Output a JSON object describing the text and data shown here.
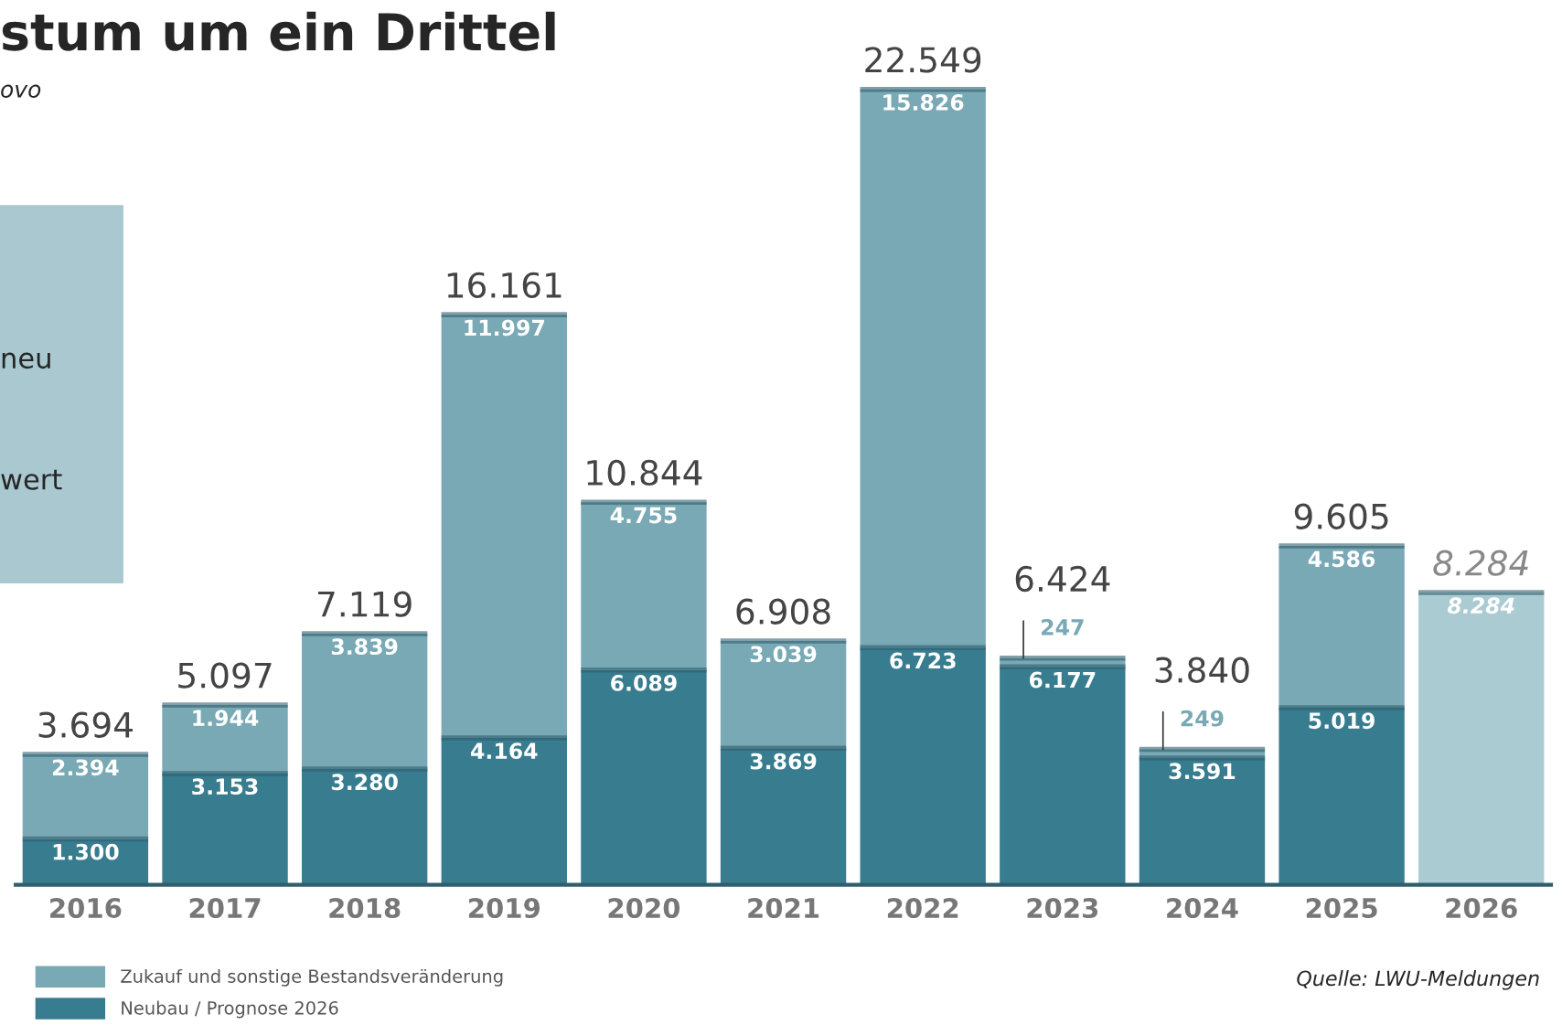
{
  "chart_data": {
    "type": "bar",
    "title": "stum um ein Drittel",
    "subtitle": "ovo",
    "stacked": true,
    "categories": [
      "2016",
      "2017",
      "2018",
      "2019",
      "2020",
      "2021",
      "2022",
      "2023",
      "2024",
      "2025",
      "2026"
    ],
    "series": [
      {
        "name": "Neubau / Prognose 2026",
        "color": "#377c8f",
        "colors": [
          "#377c8f",
          "#377c8f",
          "#377c8f",
          "#377c8f",
          "#377c8f",
          "#377c8f",
          "#377c8f",
          "#377c8f",
          "#377c8f",
          "#377c8f",
          "#abcbd3"
        ],
        "values": [
          1300,
          3153,
          3280,
          4164,
          6089,
          3869,
          6723,
          6177,
          3591,
          5019,
          8284
        ],
        "value_labels": [
          "1.300",
          "3.153",
          "3.280",
          "4.164",
          "6.089",
          "3.869",
          "6.723",
          "6.177",
          "3.591",
          "5.019",
          "8.284"
        ]
      },
      {
        "name": "Zukauf und sonstige Bestandsveränderung",
        "color": "#78a9b5",
        "values": [
          2394,
          1944,
          3839,
          11997,
          4755,
          3039,
          15826,
          247,
          249,
          4586,
          null
        ],
        "value_labels": [
          "2.394",
          "1.944",
          "3.839",
          "11.997",
          "4.755",
          "3.039",
          "15.826",
          "247",
          "249",
          "4.586",
          null
        ]
      }
    ],
    "totals": [
      "3.694",
      "5.097",
      "7.119",
      "16.161",
      "10.844",
      "6.908",
      "22.549",
      "6.424",
      "3.840",
      "9.605",
      "8.284"
    ],
    "tick_labels": "x",
    "grid": false,
    "legend": "bottom left",
    "annotations": [
      "neu",
      "wert",
      "Quelle: LWU-Meldungen"
    ]
  }
}
